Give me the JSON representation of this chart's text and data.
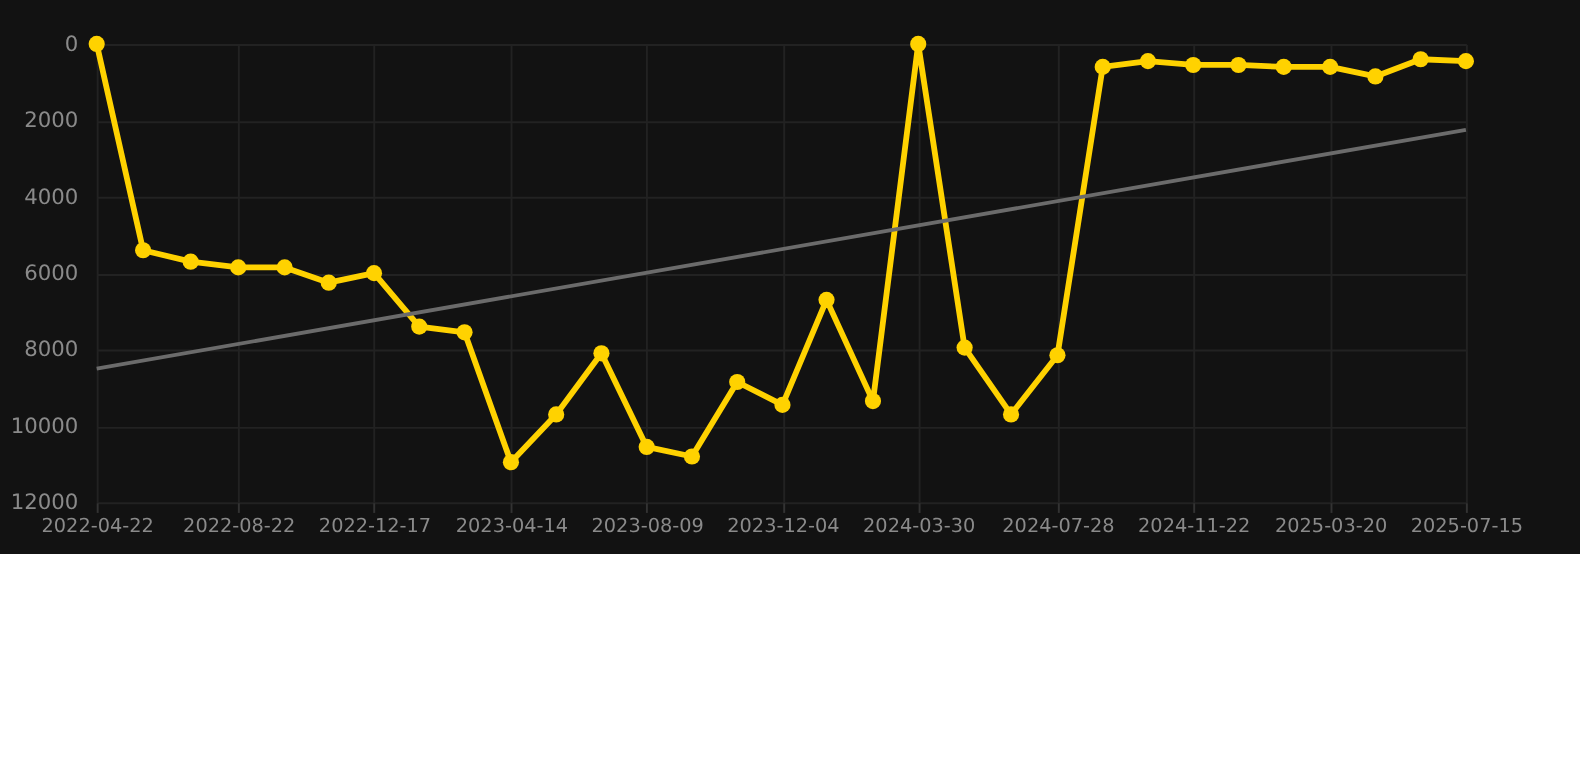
{
  "chart_data": {
    "type": "line",
    "marker": "circle",
    "line_style": "solid",
    "grid": true,
    "x": [
      "2022-04-22",
      "2022-06-01",
      "2022-07-12",
      "2022-08-22",
      "2022-10-01",
      "2022-11-08",
      "2022-12-17",
      "2023-01-25",
      "2023-03-05",
      "2023-04-14",
      "2023-05-23",
      "2023-07-01",
      "2023-08-09",
      "2023-09-17",
      "2023-10-26",
      "2023-12-04",
      "2024-01-11",
      "2024-02-20",
      "2024-03-30",
      "2024-05-09",
      "2024-06-18",
      "2024-07-28",
      "2024-09-05",
      "2024-10-14",
      "2024-11-22",
      "2024-12-31",
      "2025-02-08",
      "2025-03-20",
      "2025-04-28",
      "2025-06-06",
      "2025-07-15"
    ],
    "xlim": [
      "2022-04-22",
      "2025-07-15"
    ],
    "xticks": [
      "2022-04-22",
      "2022-08-22",
      "2022-12-17",
      "2023-04-14",
      "2023-08-09",
      "2023-12-04",
      "2024-03-30",
      "2024-07-28",
      "2024-11-22",
      "2025-03-20",
      "2025-07-15"
    ],
    "ylim": [
      12000,
      0
    ],
    "yticks": [
      0,
      2000,
      4000,
      6000,
      8000,
      10000,
      12000
    ],
    "series": [
      {
        "color": "#ffd200",
        "values": [
          0,
          5400,
          5700,
          5850,
          5850,
          6250,
          6000,
          7400,
          7550,
          10950,
          9700,
          8100,
          10550,
          10800,
          8850,
          9450,
          6700,
          9350,
          0,
          7950,
          9700,
          8150,
          600,
          450,
          550,
          550,
          600,
          600,
          850,
          400,
          450
        ]
      },
      {
        "type": "line",
        "marker": "none",
        "color": "#6b6b6b",
        "x": [
          "2022-04-22",
          "2025-07-15"
        ],
        "values": [
          8500,
          2250
        ]
      }
    ]
  }
}
